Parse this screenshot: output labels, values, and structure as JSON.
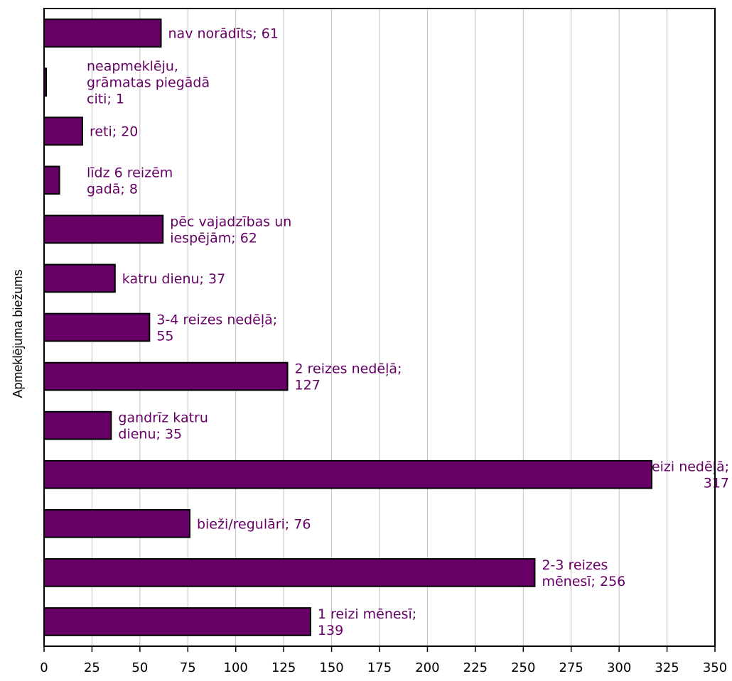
{
  "chart_data": {
    "type": "bar",
    "orientation": "horizontal",
    "title": "",
    "xlabel": "",
    "ylabel": "Apmeklējuma biežums",
    "xlim": [
      0,
      350
    ],
    "xticks": [
      0,
      25,
      50,
      75,
      100,
      125,
      150,
      175,
      200,
      225,
      250,
      275,
      300,
      325,
      350
    ],
    "grid": "vertical",
    "legend": "none",
    "bar_color": "#660066",
    "label_color": "#660066",
    "categories": [
      "nav norādīts",
      "neapmeklēju, grāmatas piegādā citi",
      "reti",
      "līdz 6 reizēm gadā",
      "pēc vajadzības un iespējām",
      "katru dienu",
      "3-4 reizes nedēļā",
      "2 reizes nedēļā",
      "gandrīz katru dienu",
      "1 reizi nedēļā",
      "bieži/regulāri",
      "2-3 reizes mēnesī",
      "1 reizi mēnesī"
    ],
    "values": [
      61,
      1,
      20,
      8,
      62,
      37,
      55,
      127,
      35,
      317,
      76,
      256,
      139
    ],
    "data_labels": [
      [
        "nav norādīts; 61"
      ],
      [
        "neapmeklēju,",
        "grāmatas piegādā",
        "citi; 1"
      ],
      [
        "reti; 20"
      ],
      [
        "līdz 6 reizēm",
        "gadā; 8"
      ],
      [
        "pēc vajadzības un",
        "iespējām; 62"
      ],
      [
        "katru dienu; 37"
      ],
      [
        "3-4 reizes nedēļā;",
        "55"
      ],
      [
        "2 reizes nedēļā;",
        "127"
      ],
      [
        "gandrīz katru",
        "dienu; 35"
      ],
      [
        "1 reizi nedēļā;",
        "317"
      ],
      [
        "bieži/regulāri; 76"
      ],
      [
        "2-3 reizes",
        "mēnesī; 256"
      ],
      [
        "1 reizi mēnesī;",
        "139"
      ]
    ]
  }
}
